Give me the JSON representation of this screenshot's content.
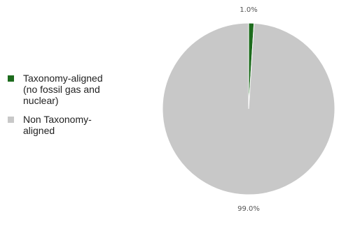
{
  "chart_data": {
    "type": "pie",
    "slices": [
      {
        "name": "Taxonomy-aligned\n(no fossil gas and\nnuclear)",
        "value": 1.0,
        "label": "1.0%",
        "color": "#1d6b1d"
      },
      {
        "name": "Non Taxonomy-\naligned",
        "value": 99.0,
        "label": "99.0%",
        "color": "#c8c8c8"
      }
    ],
    "legend_position": "left"
  }
}
